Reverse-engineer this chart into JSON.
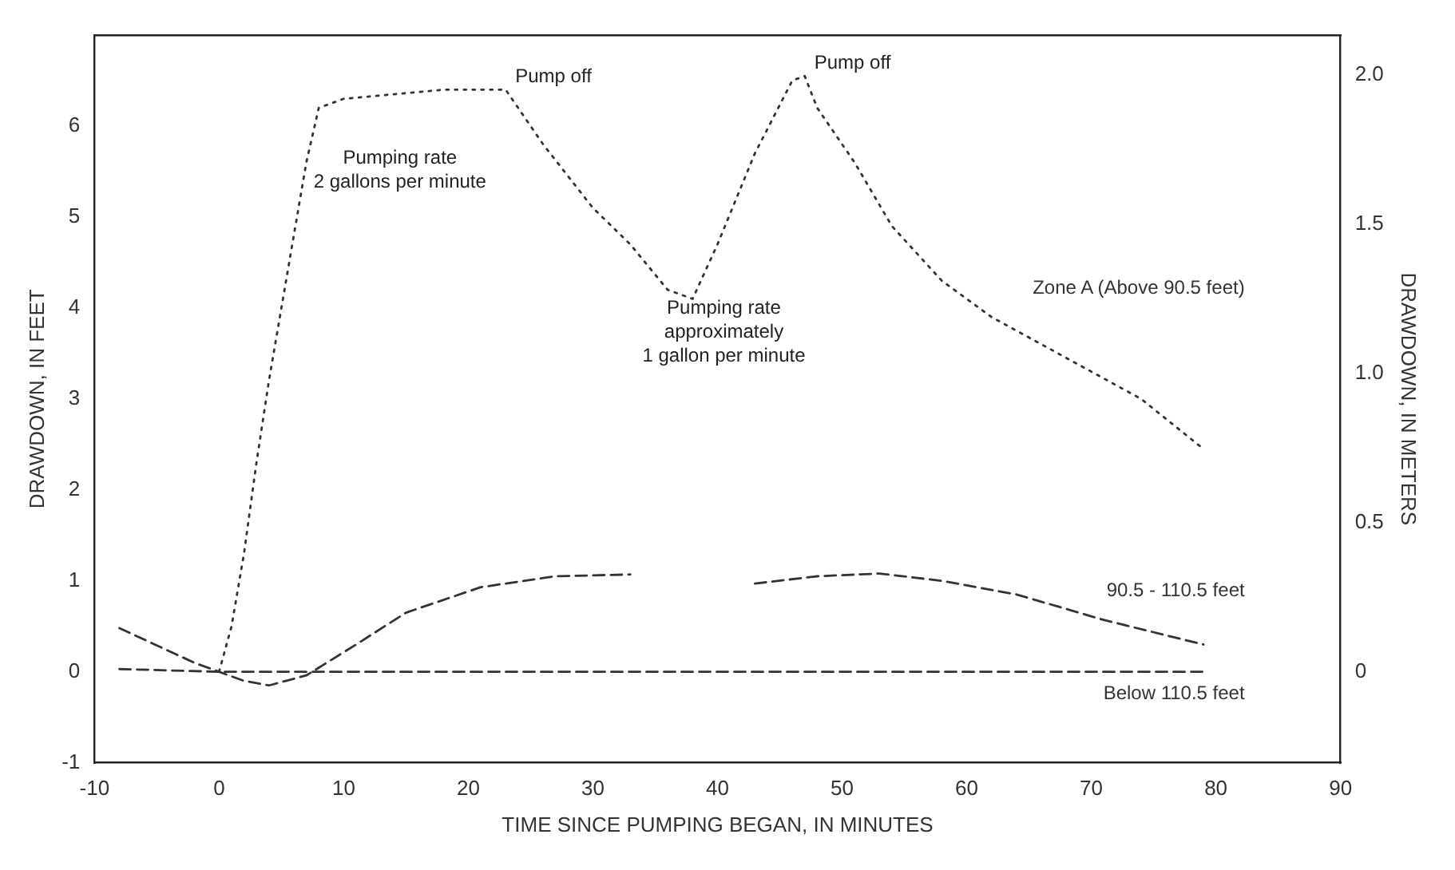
{
  "chart_data": {
    "type": "line",
    "xlabel": "TIME SINCE PUMPING BEGAN, IN MINUTES",
    "ylabel": "DRAWDOWN, IN FEET",
    "y2label": "DRAWDOWN, IN METERS",
    "xlim": [
      -10,
      90
    ],
    "xticks": [
      -10,
      0,
      10,
      20,
      30,
      40,
      50,
      60,
      70,
      80,
      90
    ],
    "ylim": [
      -1,
      7
    ],
    "yticks": [
      -1,
      0,
      1,
      2,
      3,
      4,
      5,
      6
    ],
    "y2lim": [
      -0.3048,
      2.1336
    ],
    "y2ticks": [
      0,
      0.5,
      {
        "value": 1,
        "label": "1.0"
      },
      1.5,
      {
        "value": 2,
        "label": "2.0"
      }
    ],
    "grid": false,
    "legend": false,
    "marker": "none",
    "series": [
      {
        "name": "Zone A (Above 90.5 feet)",
        "color": "#333333",
        "line_style": "dotted",
        "x": [
          0,
          1,
          2,
          3,
          4,
          5,
          6,
          7,
          8,
          10,
          14,
          18,
          22,
          23,
          26,
          30,
          33,
          36,
          38,
          40,
          43,
          46,
          47,
          48,
          51,
          54,
          58,
          62,
          66,
          70,
          74,
          79
        ],
        "values": [
          0,
          0.5,
          1.3,
          2.3,
          3.2,
          4.0,
          4.8,
          5.6,
          6.2,
          6.3,
          6.35,
          6.4,
          6.4,
          6.4,
          5.8,
          5.1,
          4.7,
          4.2,
          4.1,
          4.7,
          5.7,
          6.5,
          6.55,
          6.2,
          5.6,
          4.9,
          4.3,
          3.9,
          3.6,
          3.3,
          3.0,
          2.45
        ]
      },
      {
        "name": "90.5 - 110.5 feet",
        "color": "#333333",
        "line_style": "dashed",
        "x": [
          -8,
          -2,
          0,
          2,
          4,
          7,
          11,
          15,
          21,
          27,
          33,
          38,
          43,
          48,
          53,
          58,
          64,
          71,
          79
        ],
        "values": [
          0.48,
          0.1,
          0,
          -0.1,
          -0.15,
          -0.04,
          0.3,
          0.65,
          0.93,
          1.05,
          1.07,
          null,
          0.97,
          1.05,
          1.08,
          1.0,
          0.85,
          0.57,
          0.3
        ]
      },
      {
        "name": "Below 110.5 feet",
        "color": "#333333",
        "line_style": "dashed",
        "x": [
          -8,
          0,
          10,
          20,
          40,
          60,
          79
        ],
        "values": [
          0.03,
          0,
          0,
          0,
          0,
          0,
          0
        ]
      }
    ],
    "annotations": [
      {
        "text": "Pump off",
        "x": 23,
        "y": 6.4
      },
      {
        "text": "Pump off",
        "x": 47,
        "y": 6.55
      },
      {
        "text": "Pumping rate\n2 gallons per minute",
        "x": 14,
        "y": 6.35
      },
      {
        "text": "Pumping rate\napproximately\n1 gallon per minute",
        "x": 40,
        "y": 4.7
      }
    ]
  }
}
